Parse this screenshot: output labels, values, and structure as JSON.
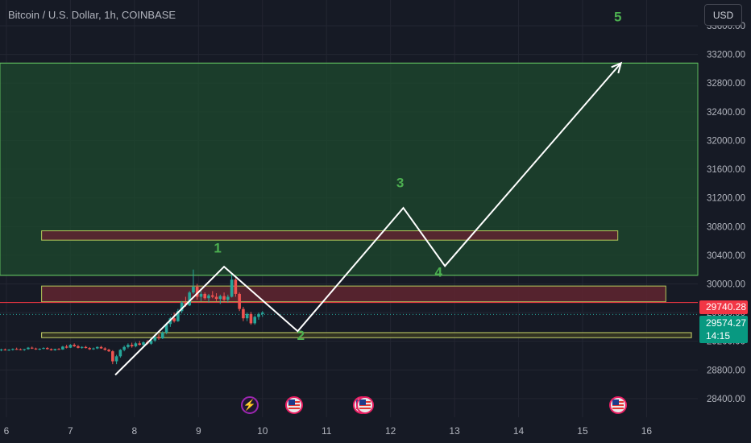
{
  "header": {
    "title": "Bitcoin / U.S. Dollar, 1h, COINBASE",
    "currency_label": "USD"
  },
  "price_tags": {
    "last_close": "29740.28",
    "current_price": "29574.27",
    "countdown": "14:15"
  },
  "colors": {
    "background": "#161a25",
    "bull_candle": "#26a69a",
    "bear_candle": "#ef5350",
    "zone_green": "#1e4a2e",
    "zone_red": "#5c2530",
    "wave_label": "#4caf50",
    "wave_line": "#ffffff"
  },
  "events": [
    {
      "icon": "lightning-icon",
      "x": 9.8
    },
    {
      "icon": "us-flag-icon",
      "x": 10.5
    },
    {
      "icon": "us-flag-icon",
      "x": 11.55
    },
    {
      "icon": "us-flag-icon",
      "x": 11.6
    },
    {
      "icon": "us-flag-icon",
      "x": 15.55
    }
  ],
  "chart_data": {
    "type": "candlestick",
    "title": "Bitcoin / U.S. Dollar, 1h, COINBASE",
    "xlabel": "",
    "ylabel": "",
    "xlim": [
      5.9,
      16.8
    ],
    "ylim": [
      28140,
      33960
    ],
    "x_ticks": [
      6,
      7,
      8,
      9,
      10,
      11,
      12,
      13,
      14,
      15,
      16
    ],
    "y_ticks": [
      28400,
      28800,
      29200,
      29600,
      30000,
      30400,
      30800,
      31200,
      31600,
      32000,
      32400,
      32800,
      33200,
      33600
    ],
    "grid": true,
    "candles": [
      [
        5.92,
        29080,
        29096,
        29060,
        29085
      ],
      [
        5.98,
        29085,
        29098,
        29070,
        29078
      ],
      [
        6.04,
        29078,
        29090,
        29065,
        29082
      ],
      [
        6.1,
        29082,
        29100,
        29070,
        29092
      ],
      [
        6.16,
        29092,
        29110,
        29080,
        29088
      ],
      [
        6.22,
        29088,
        29099,
        29075,
        29080
      ],
      [
        6.28,
        29080,
        29094,
        29066,
        29090
      ],
      [
        6.34,
        29090,
        29120,
        29082,
        29110
      ],
      [
        6.4,
        29110,
        29125,
        29092,
        29098
      ],
      [
        6.46,
        29098,
        29110,
        29080,
        29086
      ],
      [
        6.52,
        29086,
        29102,
        29075,
        29095
      ],
      [
        6.58,
        29095,
        29115,
        29088,
        29105
      ],
      [
        6.64,
        29105,
        29118,
        29085,
        29090
      ],
      [
        6.7,
        29090,
        29100,
        29070,
        29075
      ],
      [
        6.76,
        29075,
        29096,
        29068,
        29092
      ],
      [
        6.82,
        29092,
        29104,
        29080,
        29085
      ],
      [
        6.88,
        29085,
        29135,
        29080,
        29125
      ],
      [
        6.94,
        29125,
        29150,
        29100,
        29110
      ],
      [
        7.0,
        29110,
        29160,
        29105,
        29150
      ],
      [
        7.06,
        29150,
        29170,
        29120,
        29130
      ],
      [
        7.12,
        29130,
        29148,
        29100,
        29108
      ],
      [
        7.18,
        29108,
        29130,
        29095,
        29120
      ],
      [
        7.24,
        29120,
        29135,
        29100,
        29105
      ],
      [
        7.3,
        29105,
        29118,
        29078,
        29088
      ],
      [
        7.36,
        29088,
        29112,
        29080,
        29100
      ],
      [
        7.42,
        29100,
        29128,
        29090,
        29120
      ],
      [
        7.48,
        29120,
        29135,
        29095,
        29100
      ],
      [
        7.54,
        29100,
        29116,
        29070,
        29080
      ],
      [
        7.6,
        29080,
        29095,
        29050,
        29060
      ],
      [
        7.66,
        29060,
        29075,
        28880,
        28920
      ],
      [
        7.72,
        28920,
        29010,
        28880,
        28990
      ],
      [
        7.78,
        28990,
        29090,
        28970,
        29080
      ],
      [
        7.84,
        29080,
        29140,
        29060,
        29120
      ],
      [
        7.9,
        29120,
        29170,
        29100,
        29150
      ],
      [
        7.96,
        29150,
        29180,
        29110,
        29130
      ],
      [
        8.02,
        29130,
        29190,
        29115,
        29170
      ],
      [
        8.08,
        29170,
        29205,
        29140,
        29150
      ],
      [
        8.14,
        29150,
        29200,
        29130,
        29185
      ],
      [
        8.2,
        29185,
        29215,
        29150,
        29165
      ],
      [
        8.26,
        29165,
        29230,
        29150,
        29210
      ],
      [
        8.32,
        29210,
        29280,
        29190,
        29260
      ],
      [
        8.38,
        29260,
        29300,
        29220,
        29240
      ],
      [
        8.44,
        29240,
        29340,
        29230,
        29320
      ],
      [
        8.5,
        29320,
        29460,
        29300,
        29440
      ],
      [
        8.56,
        29440,
        29540,
        29400,
        29520
      ],
      [
        8.62,
        29520,
        29600,
        29460,
        29480
      ],
      [
        8.68,
        29480,
        29650,
        29470,
        29620
      ],
      [
        8.74,
        29620,
        29760,
        29590,
        29740
      ],
      [
        8.8,
        29740,
        29820,
        29680,
        29700
      ],
      [
        8.86,
        29700,
        29900,
        29690,
        29880
      ],
      [
        8.92,
        29880,
        30200,
        29860,
        29960
      ],
      [
        8.98,
        29960,
        30000,
        29780,
        29820
      ],
      [
        9.04,
        29820,
        29900,
        29760,
        29860
      ],
      [
        9.1,
        29860,
        29880,
        29780,
        29800
      ],
      [
        9.16,
        29800,
        29860,
        29740,
        29840
      ],
      [
        9.22,
        29840,
        29900,
        29800,
        29820
      ],
      [
        9.28,
        29820,
        29870,
        29760,
        29790
      ],
      [
        9.34,
        29790,
        29850,
        29720,
        29830
      ],
      [
        9.4,
        29830,
        29880,
        29760,
        29780
      ],
      [
        9.46,
        29780,
        29850,
        29740,
        29820
      ],
      [
        9.52,
        29820,
        30150,
        29810,
        30060
      ],
      [
        9.58,
        30060,
        30080,
        29820,
        29860
      ],
      [
        9.64,
        29860,
        29880,
        29620,
        29650
      ],
      [
        9.7,
        29650,
        29680,
        29480,
        29520
      ],
      [
        9.76,
        29520,
        29600,
        29480,
        29580
      ],
      [
        9.82,
        29580,
        29610,
        29430,
        29450
      ],
      [
        9.88,
        29450,
        29560,
        29430,
        29540
      ],
      [
        9.94,
        29540,
        29600,
        29500,
        29580
      ],
      [
        10.0,
        29580,
        29620,
        29540,
        29600
      ]
    ],
    "zones": [
      {
        "name": "green-zone",
        "x1": 5.9,
        "x2": 16.8,
        "y1": 30120,
        "y2": 33080
      },
      {
        "name": "upper-red-zone",
        "x1": 6.55,
        "x2": 15.55,
        "y1": 30610,
        "y2": 30740
      },
      {
        "name": "middle-red-zone",
        "x1": 6.55,
        "x2": 16.3,
        "y1": 29750,
        "y2": 29970
      },
      {
        "name": "lower-yellow-zone",
        "x1": 6.55,
        "x2": 16.7,
        "y1": 29250,
        "y2": 29320
      }
    ],
    "zone_lines": [
      30120,
      33080,
      29740
    ],
    "current_price_line": 29574.27,
    "elliott_path": [
      [
        7.7,
        28730
      ],
      [
        9.4,
        30240
      ],
      [
        10.55,
        29340
      ],
      [
        12.2,
        31060
      ],
      [
        12.85,
        30250
      ],
      [
        15.6,
        33080
      ]
    ],
    "wave_labels": [
      {
        "text": "1",
        "x": 9.3,
        "y": 30440
      },
      {
        "text": "2",
        "x": 10.6,
        "y": 29220
      },
      {
        "text": "3",
        "x": 12.15,
        "y": 31350
      },
      {
        "text": "4",
        "x": 12.75,
        "y": 30100
      },
      {
        "text": "5",
        "x": 15.55,
        "y": 33660
      }
    ]
  }
}
